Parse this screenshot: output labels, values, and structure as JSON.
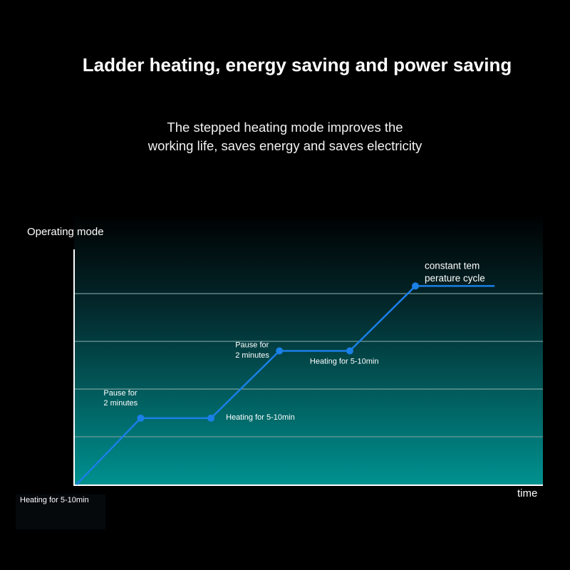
{
  "title": "Ladder heating, energy saving and power saving",
  "subtitle_lines": [
    "The stepped heating mode improves the",
    "working life, saves energy and saves electricity"
  ],
  "colors": {
    "line": "#1a7fe6",
    "grid": "#6f9a9c",
    "bg_top": "#000000",
    "bg_bottom": "#00918f"
  },
  "chart_data": {
    "type": "line",
    "title": "",
    "xlabel": "time",
    "ylabel": "Operating mode",
    "xlim": [
      0,
      10
    ],
    "ylim": [
      0,
      5.6
    ],
    "grid": true,
    "gridlines_y": [
      1,
      2,
      3,
      4
    ],
    "series": [
      {
        "name": "stepped heating",
        "x": [
          0.05,
          1.42,
          2.92,
          4.38,
          5.88,
          7.28,
          8.97
        ],
        "y": [
          0,
          1.39,
          1.39,
          2.8,
          2.8,
          4.16,
          4.16
        ],
        "markers": [
          false,
          true,
          true,
          true,
          true,
          true,
          false
        ]
      }
    ],
    "annotations": [
      {
        "text": "Heating for 5-10min",
        "lines": [
          "Heating for 5-10min"
        ]
      },
      {
        "text": "Pause for 2 minutes",
        "lines": [
          "Pause for",
          "2 minutes"
        ]
      },
      {
        "text": "Heating for 5-10min",
        "lines": [
          "Heating for 5-10min"
        ]
      },
      {
        "text": "Pause for 2 minutes",
        "lines": [
          "Pause for",
          "2 minutes"
        ]
      },
      {
        "text": "Heating for 5-10min",
        "lines": [
          "Heating for 5-10min"
        ]
      },
      {
        "text": "constant temperature cycle",
        "lines": [
          "constant tem",
          "perature cycle"
        ]
      }
    ]
  }
}
